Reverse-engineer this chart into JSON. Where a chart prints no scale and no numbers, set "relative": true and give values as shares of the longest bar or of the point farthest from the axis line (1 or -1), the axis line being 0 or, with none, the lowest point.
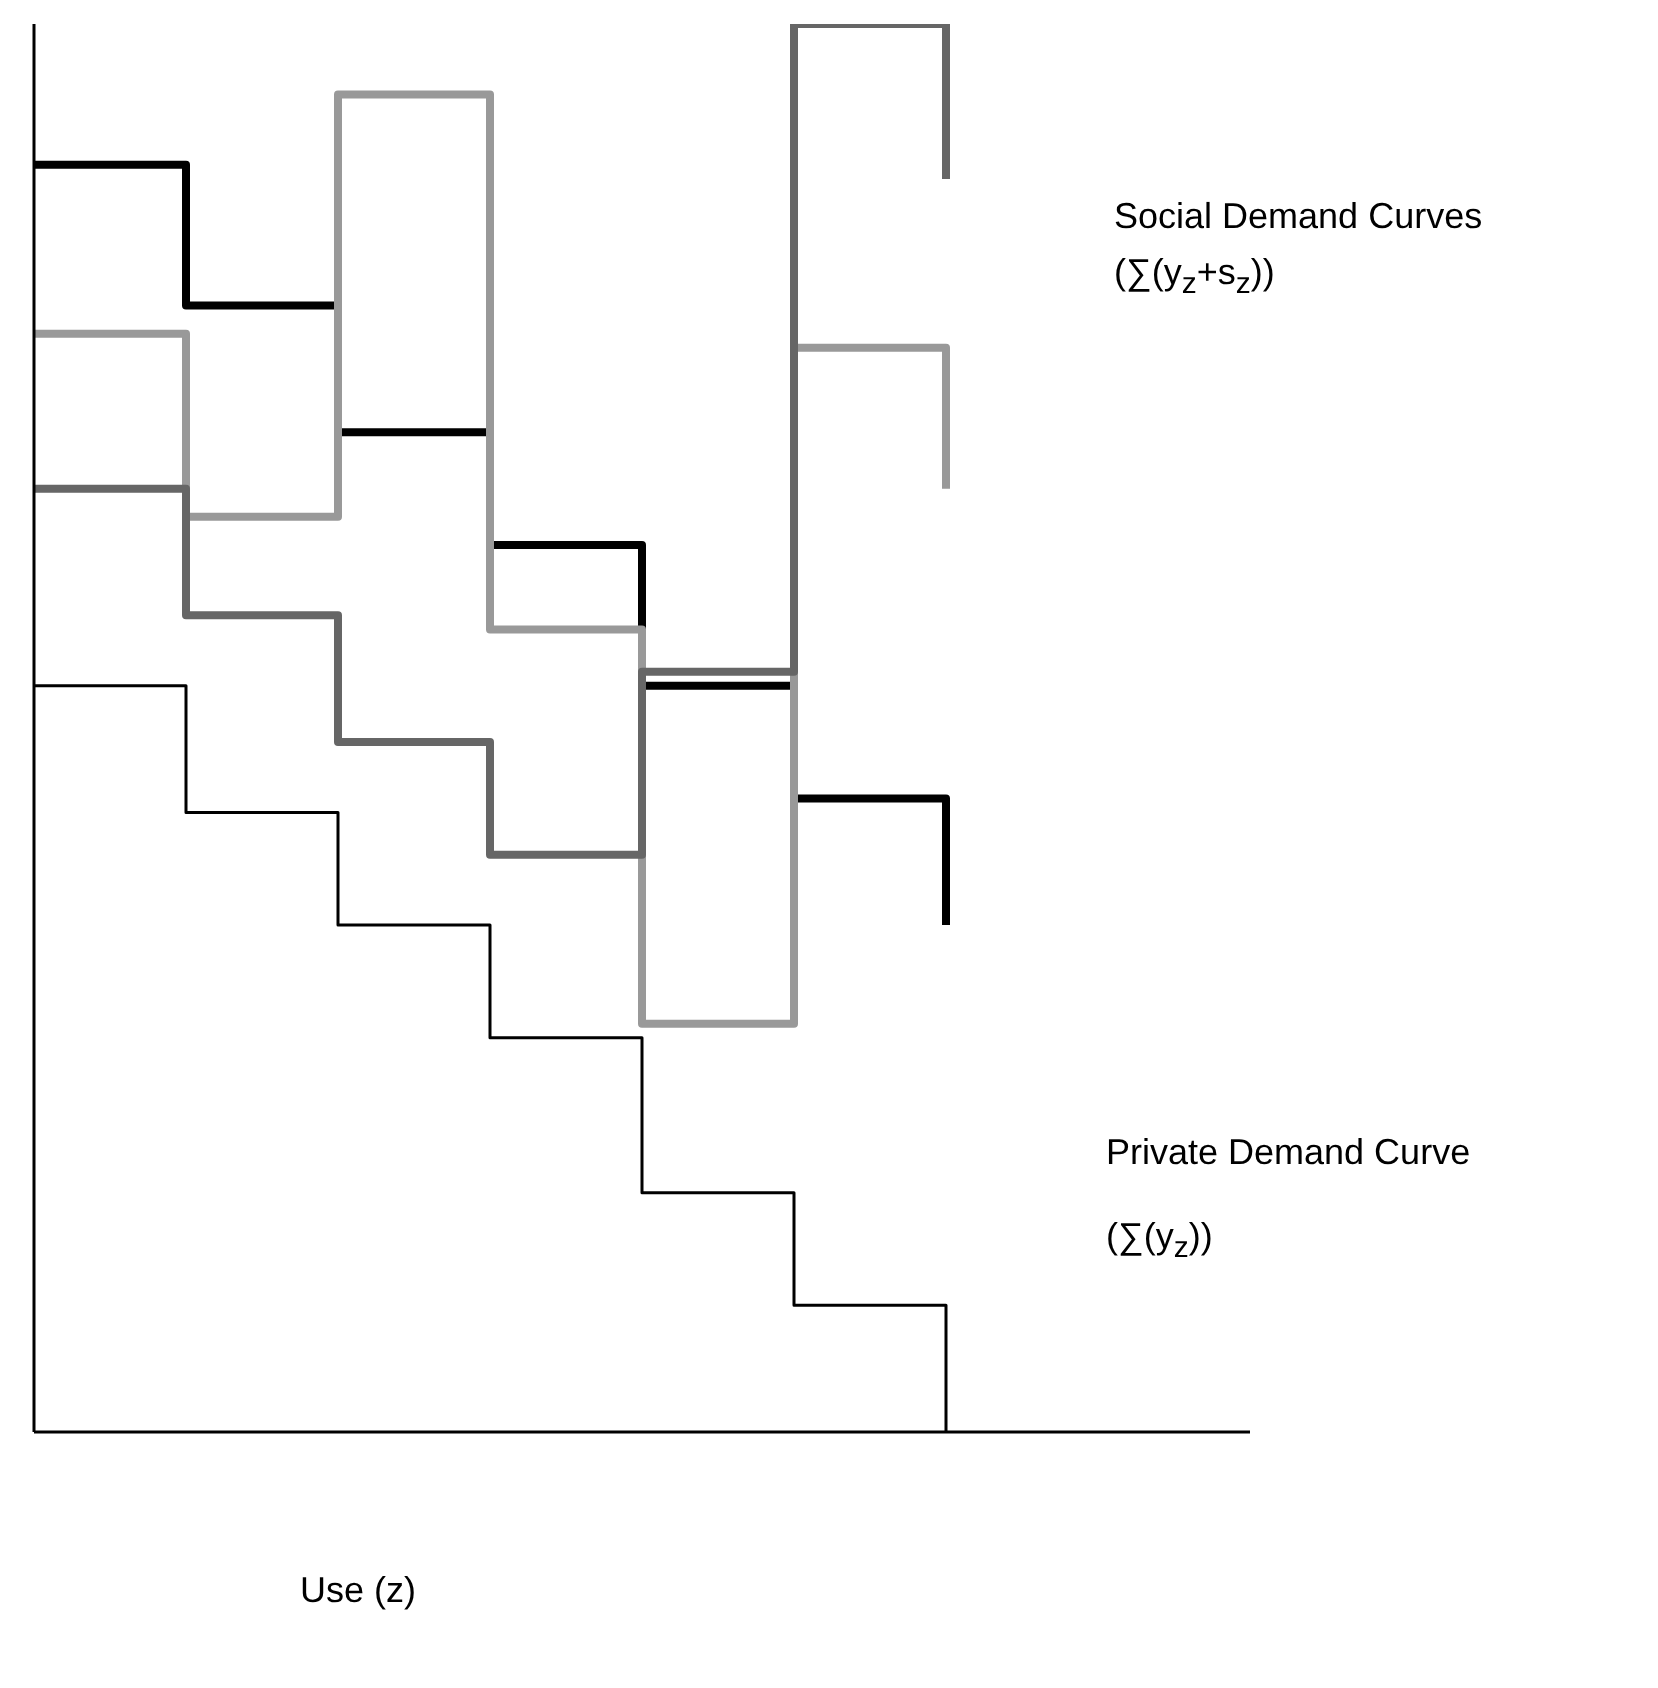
{
  "chart_data": {
    "type": "step",
    "relative": true,
    "xlabel": "Use (z)",
    "categories": [
      null,
      null,
      null,
      null,
      null,
      null,
      null,
      null,
      null
    ],
    "series": [
      {
        "color": "#000000",
        "values": [
          0.9,
          0.8,
          0.71,
          0.63,
          0.53,
          0.45,
          0.36,
          null,
          null
        ]
      },
      {
        "color": "#999999",
        "values": [
          0.78,
          0.65,
          0.95,
          0.57,
          0.29,
          0.77,
          0.67,
          null,
          null
        ]
      },
      {
        "color": "#666666",
        "values": [
          0.67,
          0.58,
          0.49,
          0.41,
          0.54,
          1.0,
          0.89,
          null,
          null
        ]
      },
      {
        "color": "#000000",
        "values": [
          0.53,
          0.44,
          0.36,
          0.28,
          0.17,
          0.09,
          0,
          null,
          null
        ]
      }
    ],
    "annotations": [
      "Social Demand Curves",
      "(∑(y$_{z}$+s$_{z}$))",
      "Private Demand Curve",
      "(∑(y$_{z}$))"
    ]
  }
}
